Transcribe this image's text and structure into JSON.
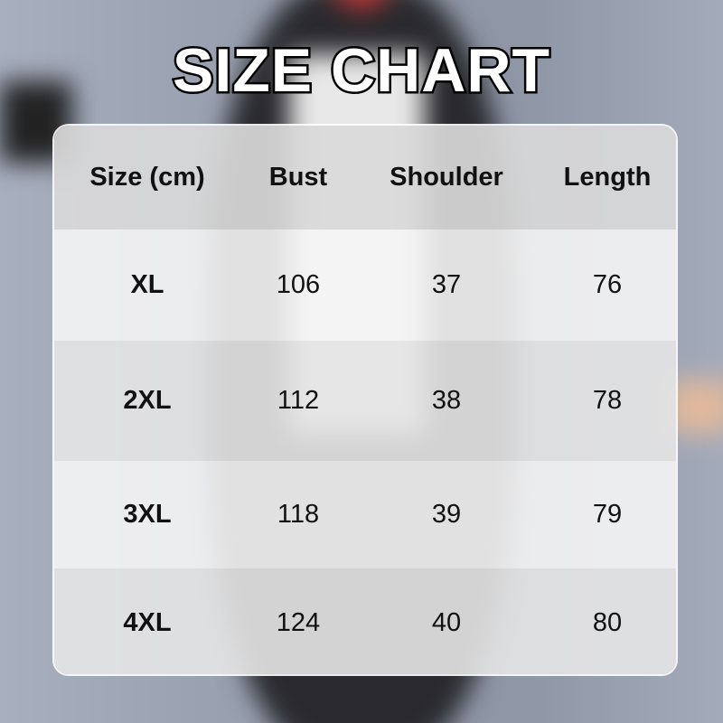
{
  "title": "SIZE CHART",
  "table": {
    "headers": [
      "Size (cm)",
      "Bust",
      "Shoulder",
      "Length"
    ],
    "rows": [
      [
        "XL",
        "106",
        "37",
        "76"
      ],
      [
        "2XL",
        "112",
        "38",
        "78"
      ],
      [
        "3XL",
        "118",
        "39",
        "79"
      ],
      [
        "4XL",
        "124",
        "40",
        "80"
      ]
    ]
  },
  "colors": {
    "header_bg": "#d9d9d9",
    "row_light": "#f2f2f2",
    "row_alt": "#e6e6e6",
    "title_fill": "#ffffff",
    "title_stroke": "#000000"
  }
}
